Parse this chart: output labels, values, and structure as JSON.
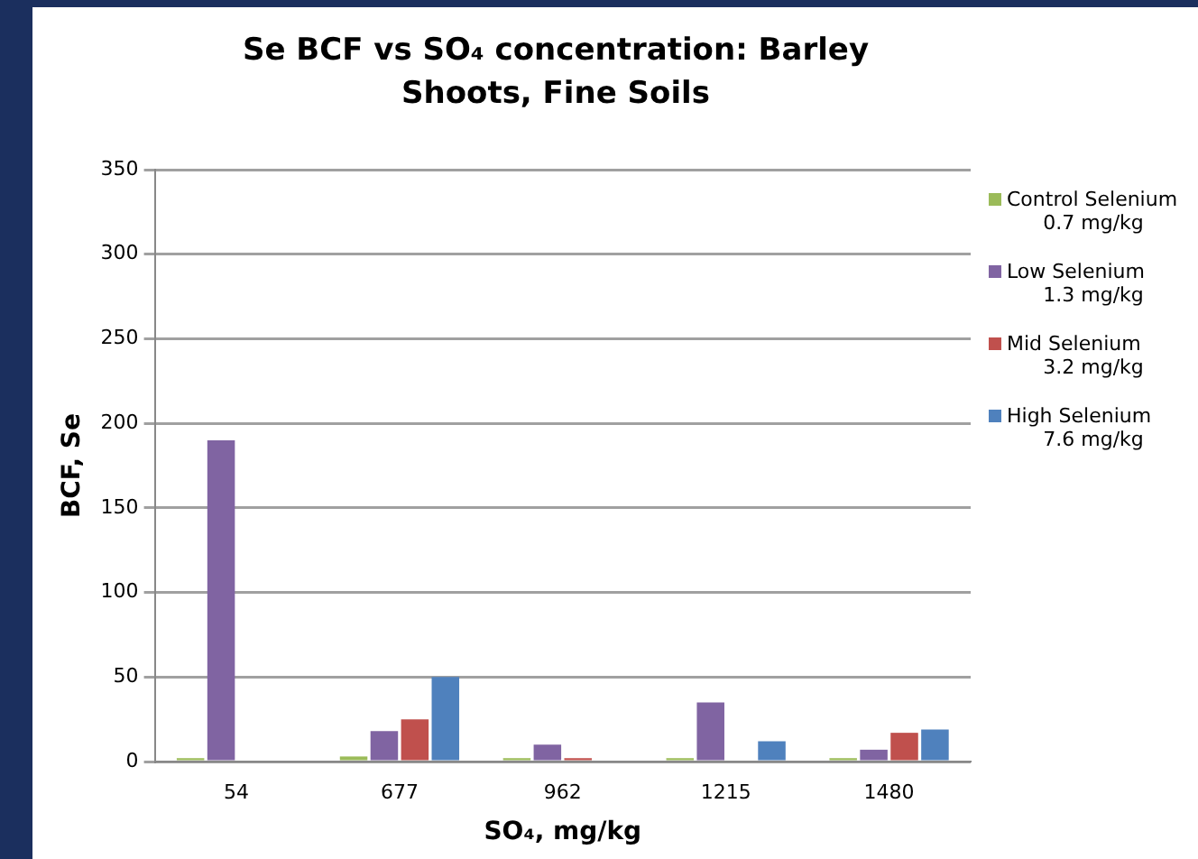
{
  "chart_data": {
    "type": "bar",
    "title": "Se BCF vs SO₄ concentration: Barley Shoots, Fine Soils",
    "xlabel": "SO₄, mg/kg",
    "ylabel": "BCF, Se",
    "categories": [
      "54",
      "677",
      "962",
      "1215",
      "1480"
    ],
    "series": [
      {
        "name": "Control Selenium 0.7 mg/kg",
        "color": "#9bbb59",
        "values": [
          2,
          3,
          2,
          2,
          2
        ]
      },
      {
        "name": "Low Selenium 1.3 mg/kg",
        "color": "#8064a2",
        "values": [
          190,
          18,
          10,
          35,
          7
        ]
      },
      {
        "name": "Mid Selenium 3.2 mg/kg",
        "color": "#c0504d",
        "values": [
          0,
          25,
          2,
          0,
          17
        ]
      },
      {
        "name": "High Selenium 7.6 mg/kg",
        "color": "#4f81bd",
        "values": [
          0,
          50,
          0,
          12,
          19
        ]
      }
    ],
    "ylim": [
      0,
      350
    ],
    "yticks": [
      0,
      50,
      100,
      150,
      200,
      250,
      300,
      350
    ],
    "grid": "y",
    "legend": "right"
  }
}
